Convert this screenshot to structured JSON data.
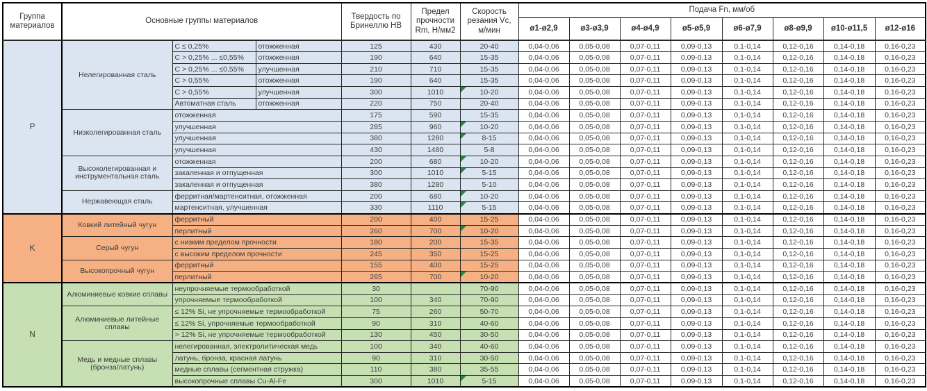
{
  "header": {
    "col_group": "Группа материалов",
    "col_main_groups": "Основные группы материалов",
    "col_hardness": "Твердость по Бринеллю HB",
    "col_strength": "Предел прочности Rm, Н/мм2",
    "col_speed": "Скорость резания Vc, м/мин",
    "col_feed": "Подача Fn, мм/об",
    "feed_columns": [
      "ø1-ø2,9",
      "ø3-ø3,9",
      "ø4-ø4,9",
      "ø5-ø5,9",
      "ø6-ø7,9",
      "ø8-ø9,9",
      "ø10-ø11,5",
      "ø12-ø16"
    ]
  },
  "feed_values": [
    "0,04-0,06",
    "0,05-0,08",
    "0,07-0,11",
    "0,09-0,13",
    "0,1-0,14",
    "0,12-0,16",
    "0,14-0,18",
    "0,16-0,23"
  ],
  "colors": {
    "section_p": "#dbe5f1",
    "section_k": "#f5b183",
    "section_n": "#c6e0b4",
    "flag_marker": "#1f8b3b",
    "border": "#262626"
  },
  "sections": [
    {
      "letter": "P",
      "color_key": "section_p",
      "groups": [
        {
          "name": "Нелегированная сталь",
          "rows": [
            {
              "c1": "C ≤ 0,25%",
              "c2": "отожженная",
              "hb": "125",
              "rm": "430",
              "vc": "20-40",
              "flag": false
            },
            {
              "c1": "C > 0,25% ... ≤0,55%",
              "c2": "отожженная",
              "hb": "190",
              "rm": "640",
              "vc": "15-35",
              "flag": false
            },
            {
              "c1": "C > 0,25% ... ≤0,55%",
              "c2": "улучшенная",
              "hb": "210",
              "rm": "710",
              "vc": "15-35",
              "flag": false
            },
            {
              "c1": "C > 0,55%",
              "c2": "отожженная",
              "hb": "190",
              "rm": "640",
              "vc": "15-35",
              "flag": false
            },
            {
              "c1": "C > 0,55%",
              "c2": "улучшенная",
              "hb": "300",
              "rm": "1010",
              "vc": "10-20",
              "flag": true
            },
            {
              "c1": "Автоматная сталь",
              "c2": "отожженная",
              "hb": "220",
              "rm": "750",
              "vc": "20-40",
              "flag": false
            }
          ]
        },
        {
          "name": "Низколегированная сталь",
          "rows": [
            {
              "c1": "отожженная",
              "hb": "175",
              "rm": "590",
              "vc": "15-35",
              "flag": false
            },
            {
              "c1": "улучшенная",
              "hb": "285",
              "rm": "960",
              "vc": "10-20",
              "flag": true
            },
            {
              "c1": "улучшенная",
              "hb": "380",
              "rm": "1280",
              "vc": "8-15",
              "flag": true
            },
            {
              "c1": "улучшенная",
              "hb": "430",
              "rm": "1480",
              "vc": "5-8",
              "flag": false
            }
          ]
        },
        {
          "name": "Высоколегированная и инструментальная сталь",
          "rows": [
            {
              "c1": "отожженная",
              "hb": "200",
              "rm": "680",
              "vc": "10-20",
              "flag": true
            },
            {
              "c1": "закаленная и отпущенная",
              "hb": "300",
              "rm": "1010",
              "vc": "5-15",
              "flag": true
            },
            {
              "c1": "закаленная и отпущенная",
              "hb": "380",
              "rm": "1280",
              "vc": "5-10",
              "flag": false
            }
          ]
        },
        {
          "name": "Нержавеющая сталь",
          "rows": [
            {
              "c1": "ферритная/мартенситная, отожженная",
              "hb": "200",
              "rm": "680",
              "vc": "10-20",
              "flag": true
            },
            {
              "c1": "мартенситная, улучшенная",
              "hb": "330",
              "rm": "1110",
              "vc": "5-15",
              "flag": true
            }
          ]
        }
      ]
    },
    {
      "letter": "K",
      "color_key": "section_k",
      "groups": [
        {
          "name": "Ковкий литейный чугун",
          "rows": [
            {
              "c1": "ферритный",
              "hb": "200",
              "rm": "400",
              "vc": "15-25",
              "flag": false
            },
            {
              "c1": "перлитный",
              "hb": "260",
              "rm": "700",
              "vc": "10-20",
              "flag": true
            }
          ]
        },
        {
          "name": "Серый чугун",
          "rows": [
            {
              "c1": "с низким пределом прочности",
              "hb": "180",
              "rm": "200",
              "vc": "15-35",
              "flag": false
            },
            {
              "c1": "с высоким пределом прочности",
              "hb": "245",
              "rm": "350",
              "vc": "15-25",
              "flag": false
            }
          ]
        },
        {
          "name": "Высокопрочный чугун",
          "rows": [
            {
              "c1": "ферритный",
              "hb": "155",
              "rm": "400",
              "vc": "15-25",
              "flag": false
            },
            {
              "c1": "перлитный",
              "hb": "265",
              "rm": "700",
              "vc": "10-20",
              "flag": true
            }
          ]
        }
      ]
    },
    {
      "letter": "N",
      "color_key": "section_n",
      "groups": [
        {
          "name": "Алюминиевые ковкие сплавы",
          "rows": [
            {
              "c1": "неупрочняемые термообработкой",
              "hb": "30",
              "rm": "",
              "vc": "70-90",
              "flag": false
            },
            {
              "c1": "упрочняемые термообработкой",
              "hb": "100",
              "rm": "340",
              "vc": "70-90",
              "flag": false
            }
          ]
        },
        {
          "name": "Алюминиевые литейные сплавы",
          "rows": [
            {
              "c1": "≤ 12% Si, не упрочняемые термообработкой",
              "hb": "75",
              "rm": "260",
              "vc": "50-70",
              "flag": false
            },
            {
              "c1": "≤ 12% Si, упрочняемые термообработкой",
              "hb": "90",
              "rm": "310",
              "vc": "40-60",
              "flag": false
            },
            {
              "c1": "> 12% Si, не упрочняемые термообработкой",
              "hb": "130",
              "rm": "450",
              "vc": "30-50",
              "flag": false
            }
          ]
        },
        {
          "name": "Медь и медные сплавы (бронза/латунь)",
          "rows": [
            {
              "c1": "нелегированная, электролитическая медь",
              "hb": "100",
              "rm": "340",
              "vc": "40-60",
              "flag": false
            },
            {
              "c1": "латунь, бронза, красная латунь",
              "hb": "90",
              "rm": "310",
              "vc": "30-50",
              "flag": false
            },
            {
              "c1": "медные сплавы (сегментная стружка)",
              "hb": "110",
              "rm": "380",
              "vc": "35-55",
              "flag": false
            },
            {
              "c1": "высокопрочные сплавы Cu-Al-Fe",
              "hb": "300",
              "rm": "1010",
              "vc": "5-15",
              "flag": true
            }
          ]
        }
      ]
    }
  ]
}
